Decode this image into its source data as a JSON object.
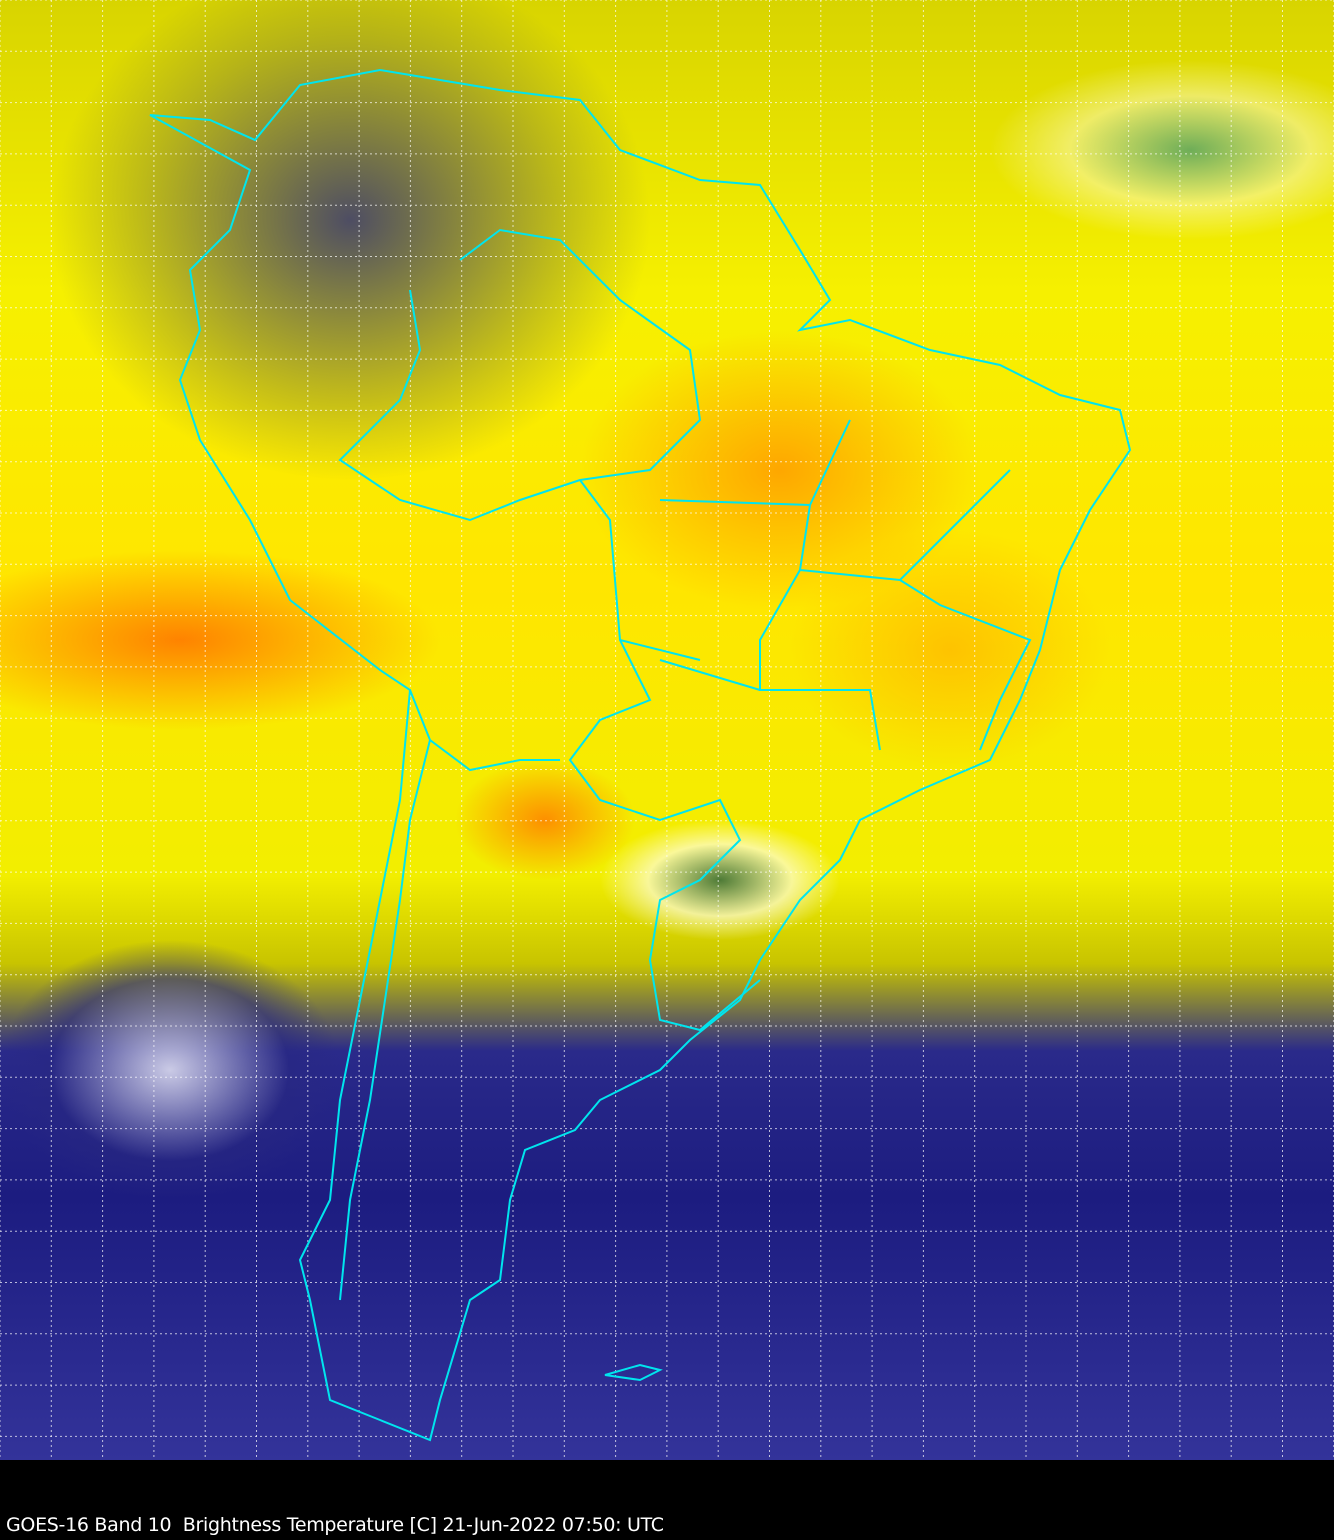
{
  "caption": "GOES-16 Band 10  Brightness Temperature [C] 21-Jun-2022 07:50: UTC",
  "colors": {
    "border_lines": "#00e5ee",
    "grid_lines": "#ffffff",
    "background": "#000000"
  }
}
